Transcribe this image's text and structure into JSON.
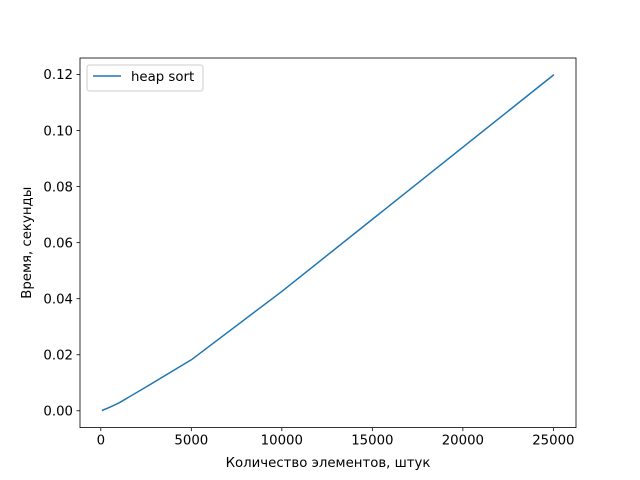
{
  "chart_data": {
    "type": "line",
    "title": "",
    "xlabel": "Количество элементов, штук",
    "ylabel": "Время, секунды",
    "xlim": [
      -1150,
      26250
    ],
    "ylim": [
      -0.006,
      0.1259
    ],
    "xticks": [
      0,
      5000,
      10000,
      15000,
      20000,
      25000
    ],
    "xtick_labels": [
      "0",
      "5000",
      "10000",
      "15000",
      "20000",
      "25000"
    ],
    "yticks": [
      0.0,
      0.02,
      0.04,
      0.06,
      0.08,
      0.1,
      0.12
    ],
    "ytick_labels": [
      "0.00",
      "0.02",
      "0.04",
      "0.06",
      "0.08",
      "0.10",
      "0.12"
    ],
    "grid": false,
    "legend": {
      "position": "top-left"
    },
    "series": [
      {
        "name": "heap sort",
        "color": "#1f77b4",
        "x": [
          100,
          500,
          1000,
          2500,
          5000,
          10000,
          25000
        ],
        "y": [
          0.0002,
          0.0013,
          0.0028,
          0.0085,
          0.0182,
          0.0426,
          0.1198
        ]
      }
    ]
  }
}
